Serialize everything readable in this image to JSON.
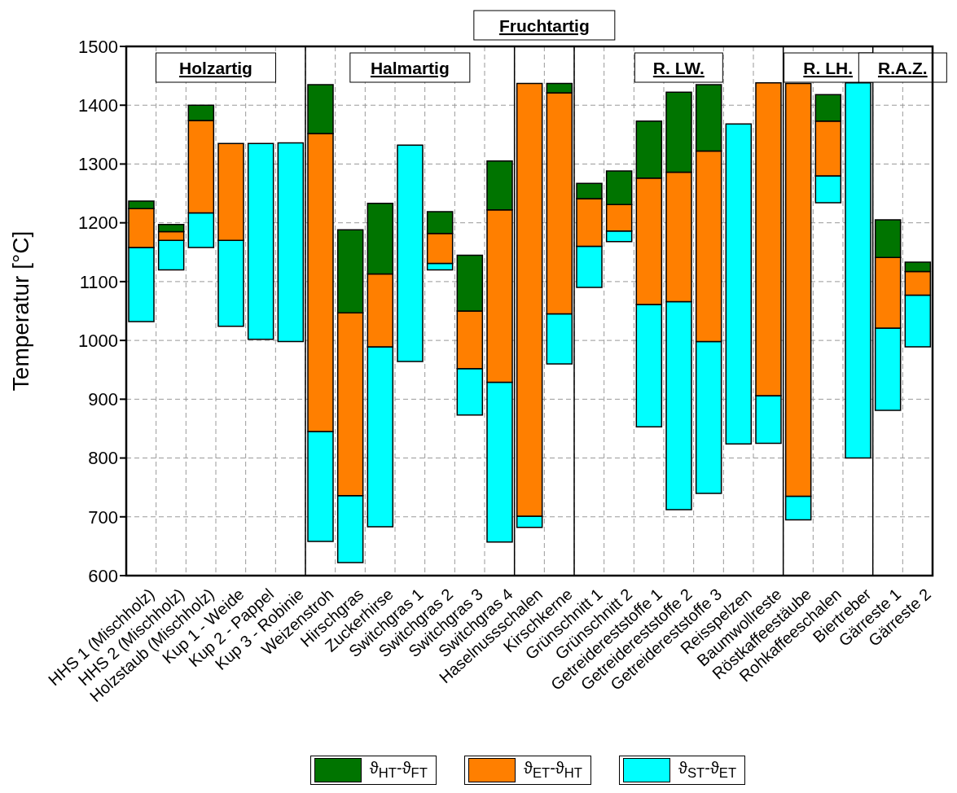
{
  "chart_data": {
    "type": "bar",
    "ylabel": "Temperatur [°C]",
    "ylim": [
      600,
      1500
    ],
    "yticks": [
      600,
      700,
      800,
      900,
      1000,
      1100,
      1200,
      1300,
      1400,
      1500
    ],
    "grid": true,
    "legend": "bottom",
    "categories": [
      "HHS 1 (Mischholz)",
      "HHS 2 (Mischholz)",
      "Holzstaub (Mischholz)",
      "Kup 1 - Weide",
      "Kup 2 - Pappel",
      "Kup 3 - Robinie",
      "Weizenstroh",
      "Hirschgras",
      "Zuckerhirse",
      "Switchgras 1",
      "Switchgras 2",
      "Switchgras 3",
      "Switchgras 4",
      "Haselnussschalen",
      "Kirschkerne",
      "Grünschnitt 1",
      "Grünschnitt 2",
      "Getreidereststoffe 1",
      "Getreidereststoffe 2",
      "Getreidereststoffe 3",
      "Reisspelzen",
      "Baumwollreste",
      "Röstkaffeestäube",
      "Rohkaffeeschalen",
      "Biertreber",
      "Gärreste 1",
      "Gärreste 2"
    ],
    "series": [
      {
        "name": "ϑ$_{ST}$-ϑ$_{ET}$",
        "color": "#00ffff",
        "base": [
          1032,
          1120,
          1158,
          1024,
          1002,
          998,
          658,
          622,
          683,
          964,
          1120,
          873,
          657,
          682,
          960,
          1090,
          1168,
          853,
          712,
          740,
          824,
          825,
          695,
          1234,
          800,
          881,
          989
        ],
        "values": [
          126,
          50,
          59,
          146,
          333,
          338,
          187,
          114,
          306,
          368,
          11,
          79,
          272,
          19,
          85,
          70,
          18,
          208,
          354,
          258,
          544,
          81,
          40,
          46,
          638,
          140,
          88
        ]
      },
      {
        "name": "ϑ$_{ET}$-ϑ$_{HT}$",
        "color": "#ff7f00",
        "base": [
          1158,
          1170,
          1217,
          1170,
          null,
          null,
          845,
          736,
          989,
          null,
          1131,
          952,
          929,
          701,
          1045,
          1160,
          1186,
          1061,
          1066,
          998,
          null,
          906,
          735,
          1280,
          null,
          1021,
          1077
        ],
        "values": [
          66,
          15,
          157,
          165,
          null,
          null,
          507,
          311,
          124,
          null,
          51,
          98,
          293,
          736,
          376,
          81,
          45,
          215,
          220,
          324,
          null,
          532,
          702,
          93,
          null,
          120,
          40
        ]
      },
      {
        "name": "ϑ$_{HT}$-ϑ$_{FT}$",
        "color": "#007400",
        "base": [
          1224,
          1185,
          1374,
          null,
          null,
          null,
          1352,
          1047,
          1113,
          null,
          1182,
          1050,
          1222,
          null,
          1421,
          1241,
          1231,
          1276,
          1286,
          1322,
          null,
          null,
          null,
          1373,
          null,
          1141,
          1117
        ],
        "values": [
          13,
          12,
          26,
          null,
          null,
          null,
          83,
          141,
          120,
          null,
          37,
          95,
          83,
          null,
          16,
          26,
          57,
          97,
          136,
          113,
          null,
          null,
          null,
          45,
          null,
          64,
          16
        ]
      }
    ],
    "annotations": [
      "Holzartig",
      "Halmartig",
      "Fruchtartig",
      "R. LW.",
      "R. LH.",
      "R.A.Z."
    ]
  }
}
